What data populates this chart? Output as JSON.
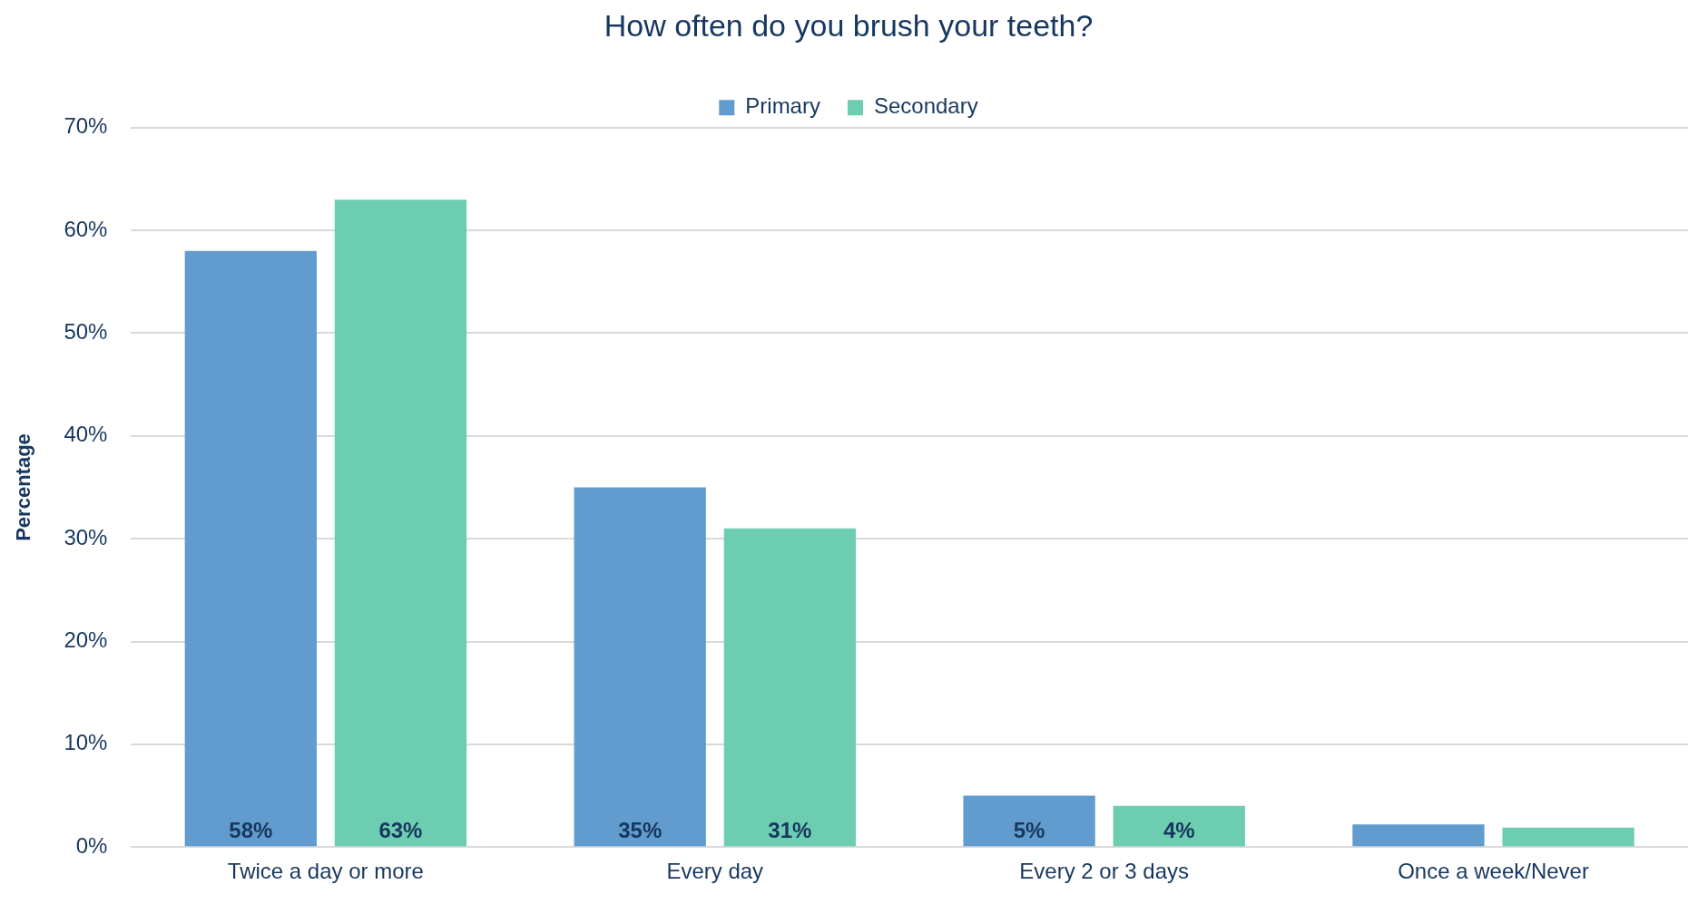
{
  "chart_data": {
    "type": "bar",
    "title": "How often do you brush your teeth?",
    "categories": [
      "Twice a day or more",
      "Every day",
      "Every 2 or 3 days",
      "Once a week/Never"
    ],
    "series": [
      {
        "name": "Primary",
        "color": "#629bcd",
        "values": [
          58,
          35,
          5,
          2.2
        ],
        "value_labels": [
          "58%",
          "35%",
          "5%",
          null
        ]
      },
      {
        "name": "Secondary",
        "color": "#6dcdb1",
        "values": [
          63,
          31,
          4,
          1.9
        ],
        "value_labels": [
          "63%",
          "31%",
          "4%",
          null
        ]
      }
    ],
    "ylabel": "Percentage",
    "ylim": [
      0,
      70
    ],
    "yticks": [
      {
        "value": 0,
        "label": "0%"
      },
      {
        "value": 10,
        "label": "10%"
      },
      {
        "value": 20,
        "label": "20%"
      },
      {
        "value": 30,
        "label": "30%"
      },
      {
        "value": 40,
        "label": "40%"
      },
      {
        "value": 50,
        "label": "50%"
      },
      {
        "value": 60,
        "label": "60%"
      },
      {
        "value": 70,
        "label": "70%"
      }
    ],
    "grid": "y",
    "legend": "top"
  }
}
